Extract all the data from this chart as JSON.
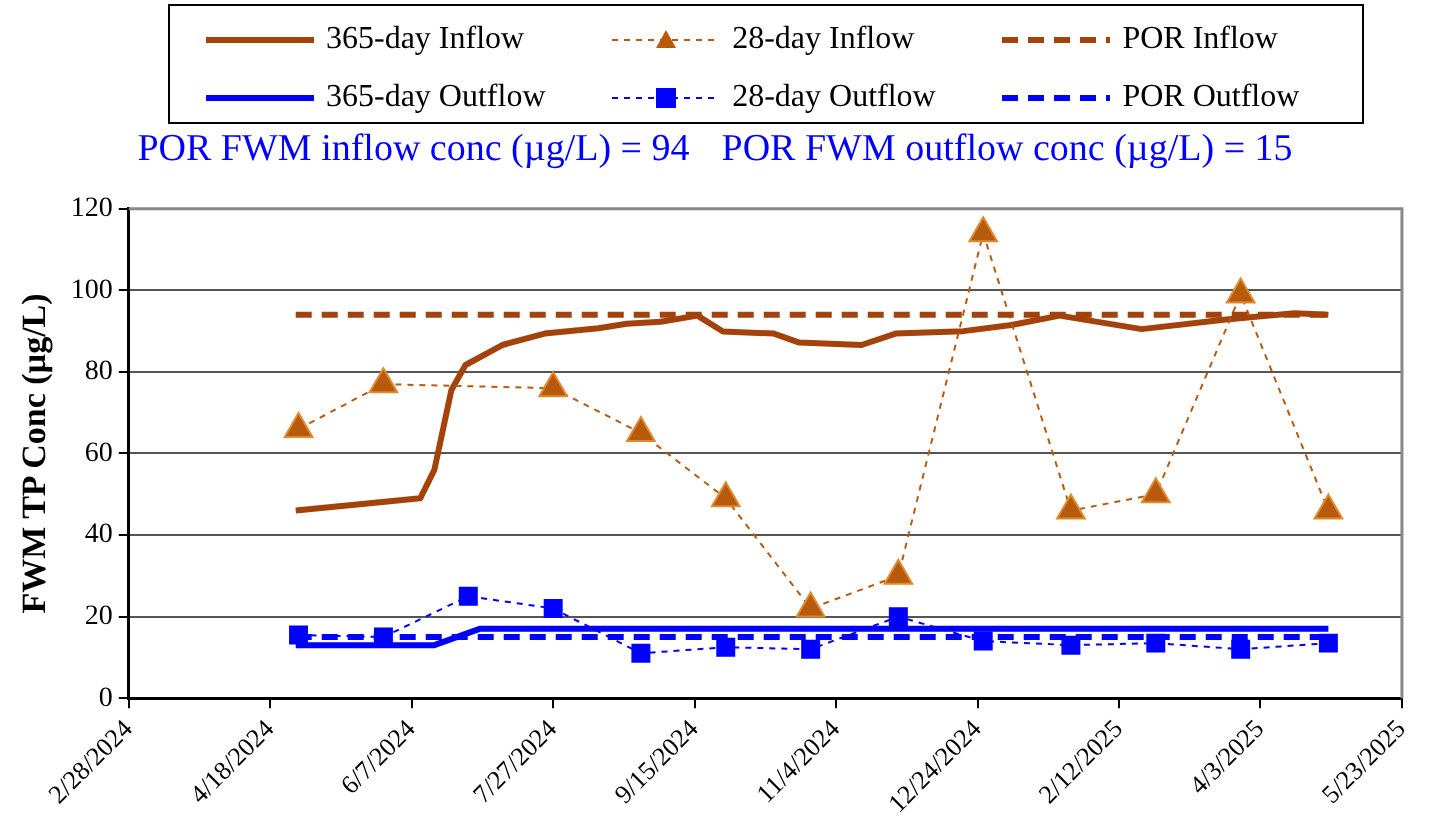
{
  "chart_data": {
    "type": "line",
    "ylabel": "FWM TP Conc (µg/L)",
    "annotations": [
      "POR FWM inflow conc (µg/L) = 94",
      "POR FWM outflow conc (µg/L) = 15"
    ],
    "xlim": [
      "2024-02-28",
      "2025-05-23"
    ],
    "xticks": [
      {
        "value": "2024-02-28",
        "label": "2/28/2024"
      },
      {
        "value": "2024-04-18",
        "label": "4/18/2024"
      },
      {
        "value": "2024-06-07",
        "label": "6/7/2024"
      },
      {
        "value": "2024-07-27",
        "label": "7/27/2024"
      },
      {
        "value": "2024-09-15",
        "label": "9/15/2024"
      },
      {
        "value": "2024-11-04",
        "label": "11/4/2024"
      },
      {
        "value": "2024-12-24",
        "label": "12/24/2024"
      },
      {
        "value": "2025-02-12",
        "label": "2/12/2025"
      },
      {
        "value": "2025-04-03",
        "label": "4/3/2025"
      },
      {
        "value": "2025-05-23",
        "label": "5/23/2025"
      }
    ],
    "ylim": [
      0,
      120
    ],
    "yticks": [
      0,
      20,
      40,
      60,
      80,
      100,
      120
    ],
    "grid": "y",
    "legend": "top",
    "series": [
      {
        "name": "365-day Inflow",
        "color": "#a4420c",
        "line_style": "solid",
        "marker": "none",
        "x": [
          "2024-04-27",
          "2024-06-10",
          "2024-06-15",
          "2024-06-21",
          "2024-06-26",
          "2024-07-09",
          "2024-07-24",
          "2024-08-12",
          "2024-08-22",
          "2024-09-03",
          "2024-09-16",
          "2024-09-25",
          "2024-10-13",
          "2024-10-22",
          "2024-11-13",
          "2024-11-25",
          "2024-12-19",
          "2025-01-05",
          "2025-01-22",
          "2025-02-20",
          "2025-03-21",
          "2025-04-15",
          "2025-04-27"
        ],
        "values": [
          46,
          49,
          56,
          75.5,
          81.7,
          86.6,
          89.4,
          90.7,
          91.8,
          92.3,
          93.8,
          89.9,
          89.4,
          87.2,
          86.6,
          89.4,
          90,
          91.5,
          93.8,
          90.5,
          92.8,
          94.4,
          94
        ]
      },
      {
        "name": "28-day Inflow",
        "color": "#b85a0c",
        "line_style": "dashed",
        "marker": "triangle",
        "x": [
          "2024-04-28",
          "2024-05-28",
          "2024-06-27",
          "2024-07-27",
          "2024-08-27",
          "2024-09-26",
          "2024-10-26",
          "2024-11-26",
          "2024-12-26",
          "2025-01-26",
          "2025-02-25",
          "2025-03-27",
          "2025-04-27"
        ],
        "values": [
          66,
          77,
          null,
          76,
          65,
          49,
          22,
          30,
          114,
          46,
          50,
          99,
          46
        ]
      },
      {
        "name": "POR Inflow",
        "color": "#a4420c",
        "line_style": "dashed",
        "marker": "none",
        "x": [
          "2024-04-27",
          "2025-04-27"
        ],
        "values": [
          94,
          94
        ]
      },
      {
        "name": "365-day Outflow",
        "color": "#0000ff",
        "line_style": "solid",
        "marker": "none",
        "x": [
          "2024-04-27",
          "2024-06-15",
          "2024-07-01",
          "2024-12-01",
          "2025-04-27"
        ],
        "values": [
          13,
          13,
          17,
          17,
          17
        ]
      },
      {
        "name": "28-day Outflow",
        "color": "#0000ff",
        "line_style": "dashed",
        "marker": "square",
        "x": [
          "2024-04-28",
          "2024-05-28",
          "2024-06-27",
          "2024-07-27",
          "2024-08-27",
          "2024-09-26",
          "2024-10-26",
          "2024-11-26",
          "2024-12-26",
          "2025-01-26",
          "2025-02-25",
          "2025-03-27",
          "2025-04-27"
        ],
        "values": [
          15.5,
          15,
          25,
          22,
          11,
          12.5,
          12,
          20,
          14,
          13,
          13.5,
          12,
          13.5
        ]
      },
      {
        "name": "POR Outflow",
        "color": "#0000ff",
        "line_style": "dashed",
        "marker": "none",
        "x": [
          "2024-04-27",
          "2025-04-27"
        ],
        "values": [
          15,
          15
        ]
      }
    ]
  }
}
